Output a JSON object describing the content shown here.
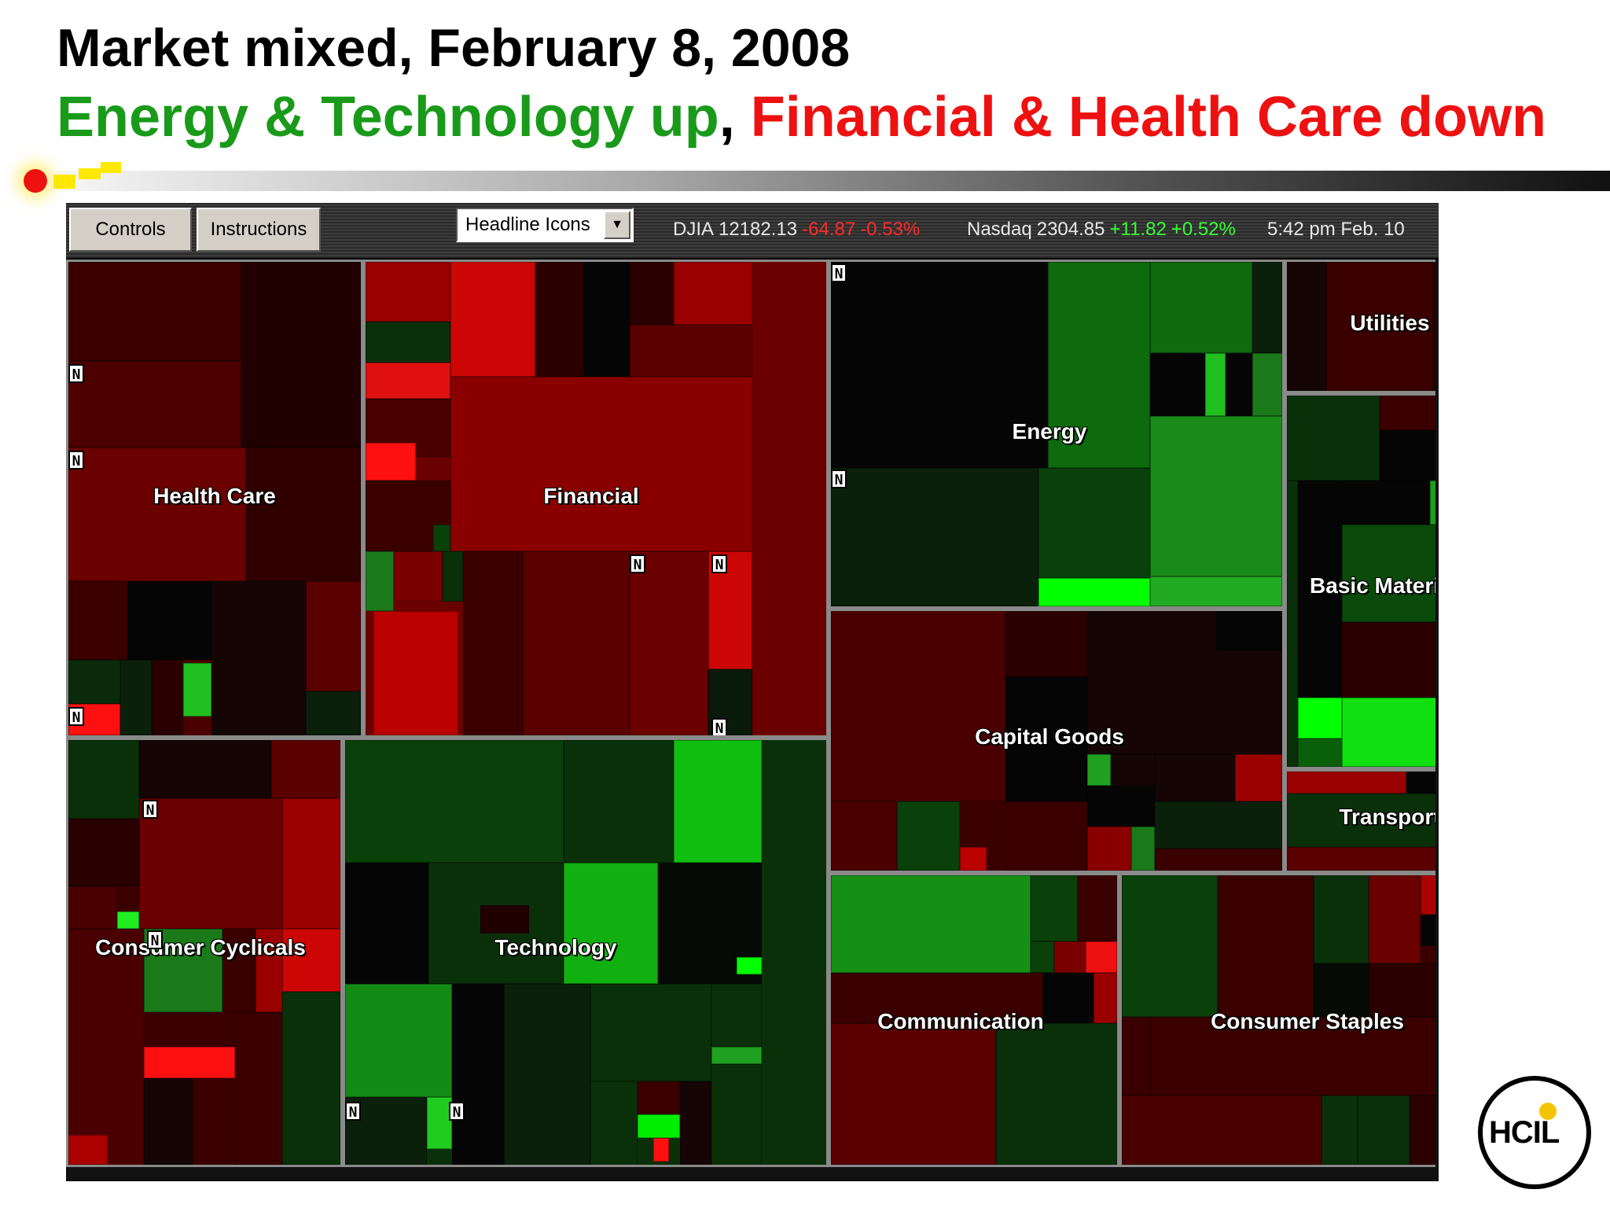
{
  "slide": {
    "title": "Market mixed, February 8, 2008",
    "subtitle_up": "Energy & Technology up",
    "subtitle_sep": ",",
    "subtitle_down": "Financial & Health Care down"
  },
  "toolbar": {
    "controls_label": "Controls",
    "instructions_label": "Instructions",
    "view_select_value": "Headline Icons",
    "djia": {
      "label": "DJIA",
      "value": "12182.13",
      "change": "-64.87",
      "pct": "-0.53%"
    },
    "nasdaq": {
      "label": "Nasdaq",
      "value": "2304.85",
      "change": "+11.82",
      "pct": "+0.52%"
    },
    "timestamp": "5:42 pm  Feb. 10"
  },
  "colors": {
    "up": "#1a9a1a",
    "down": "#ee1111",
    "gain_bright": "#00ff00",
    "loss_bright": "#ff0000"
  },
  "sectors": [
    {
      "name": "Health Care",
      "label": "Health Care"
    },
    {
      "name": "Financial",
      "label": "Financial"
    },
    {
      "name": "Energy",
      "label": "Energy"
    },
    {
      "name": "Utilities",
      "label": "Utilities"
    },
    {
      "name": "Basic Materials",
      "label": "Basic Materials"
    },
    {
      "name": "Transport",
      "label": "Transport"
    },
    {
      "name": "Capital Goods",
      "label": "Capital Goods"
    },
    {
      "name": "Consumer Cyclicals",
      "label": "Consumer Cyclicals"
    },
    {
      "name": "Technology",
      "label": "Technology"
    },
    {
      "name": "Communication",
      "label": "Communication"
    },
    {
      "name": "Consumer Staples",
      "label": "Consumer Staples"
    }
  ],
  "news_icon_text": "N",
  "logo": {
    "text": "HCIL"
  }
}
